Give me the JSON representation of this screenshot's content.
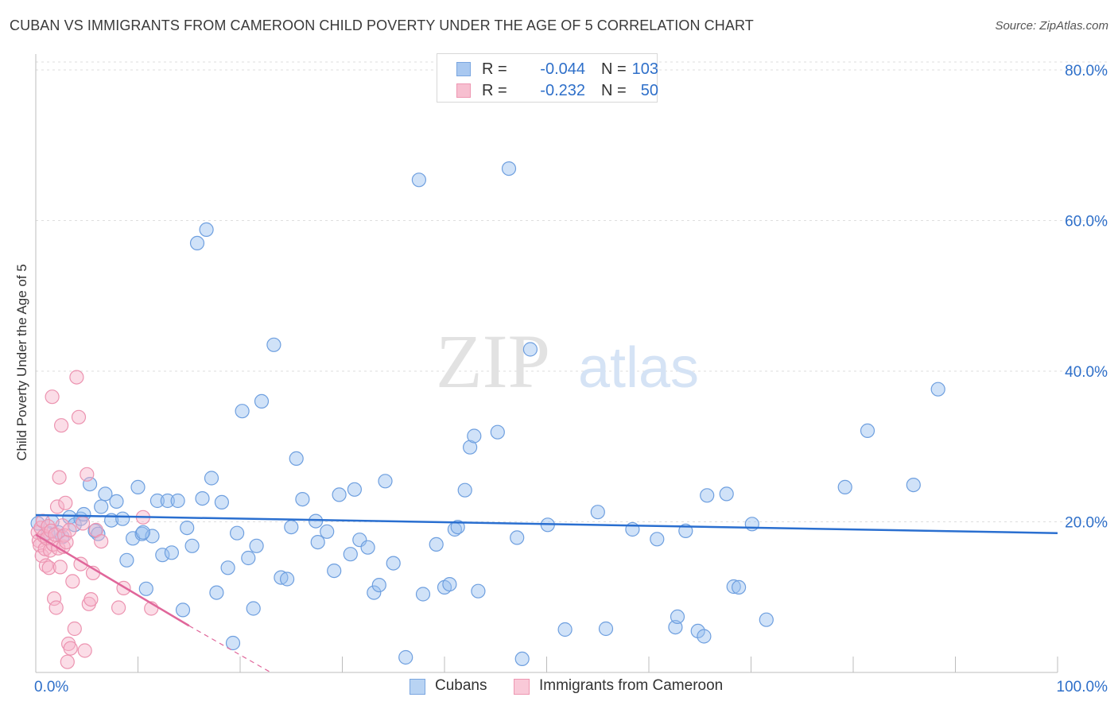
{
  "title": "CUBAN VS IMMIGRANTS FROM CAMEROON CHILD POVERTY UNDER THE AGE OF 5 CORRELATION CHART",
  "source": "Source: ZipAtlas.com",
  "watermark": {
    "part1": "ZIP",
    "part2": "atlas"
  },
  "stats": [
    {
      "r_label": "R =",
      "r_value": "-0.044",
      "n_label": "N =",
      "n_value": "103",
      "color": "#a9c8f0",
      "border": "#7aa6e0"
    },
    {
      "r_label": "R =",
      "r_value": "-0.232",
      "n_label": "N =",
      "n_value": "50",
      "color": "#f7bfd0",
      "border": "#ee97b2"
    }
  ],
  "legend": [
    {
      "label": "Cubans",
      "color": "#b8d3f3",
      "border": "#7aa6e0"
    },
    {
      "label": "Immigrants from Cameroon",
      "color": "#f9c9d8",
      "border": "#ee97b2"
    }
  ],
  "chart_data": {
    "type": "scatter",
    "title": "CUBAN VS IMMIGRANTS FROM CAMEROON CHILD POVERTY UNDER THE AGE OF 5 CORRELATION CHART",
    "xlabel": "",
    "ylabel": "Child Poverty Under the Age of 5",
    "xlim": [
      0,
      100
    ],
    "ylim": [
      0,
      80
    ],
    "x_tick_labels": [
      "0.0%",
      "100.0%"
    ],
    "y_ticks": [
      20,
      40,
      60,
      80
    ],
    "y_tick_labels": [
      "20.0%",
      "40.0%",
      "60.0%",
      "80.0%"
    ],
    "grid": "horizontal dashed",
    "legend_position": "bottom-center",
    "colors": {
      "Cubans": "#5b93dc",
      "Immigrants from Cameroon": "#e983a6",
      "cubans_trend": "#2a6fd0",
      "cameroon_trend": "#e0669a",
      "axis_tick_text": "#2e6fc9"
    },
    "series": [
      {
        "name": "Cubans",
        "points": [
          [
            0.2,
            19.8
          ],
          [
            1.2,
            18.5
          ],
          [
            1.6,
            20.0
          ],
          [
            2.2,
            18.6
          ],
          [
            2.6,
            18.0
          ],
          [
            3.3,
            20.6
          ],
          [
            3.8,
            19.6
          ],
          [
            4.4,
            20.4
          ],
          [
            4.7,
            21.0
          ],
          [
            5.3,
            25.0
          ],
          [
            5.8,
            18.8
          ],
          [
            6.4,
            22.0
          ],
          [
            6.8,
            23.7
          ],
          [
            7.4,
            20.2
          ],
          [
            7.9,
            22.7
          ],
          [
            8.5,
            20.4
          ],
          [
            8.9,
            14.9
          ],
          [
            9.5,
            17.8
          ],
          [
            10.0,
            24.6
          ],
          [
            10.4,
            18.4
          ],
          [
            10.8,
            11.1
          ],
          [
            11.4,
            18.1
          ],
          [
            11.9,
            22.8
          ],
          [
            12.4,
            15.6
          ],
          [
            12.9,
            22.8
          ],
          [
            13.3,
            15.9
          ],
          [
            13.9,
            22.8
          ],
          [
            14.4,
            8.3
          ],
          [
            14.8,
            19.2
          ],
          [
            15.3,
            16.8
          ],
          [
            15.8,
            57.0
          ],
          [
            16.7,
            58.8
          ],
          [
            16.3,
            23.1
          ],
          [
            17.2,
            25.8
          ],
          [
            17.7,
            10.6
          ],
          [
            18.2,
            22.6
          ],
          [
            18.8,
            13.9
          ],
          [
            19.3,
            3.9
          ],
          [
            19.7,
            18.5
          ],
          [
            20.2,
            34.7
          ],
          [
            20.8,
            15.2
          ],
          [
            21.3,
            8.5
          ],
          [
            21.6,
            16.8
          ],
          [
            22.1,
            36.0
          ],
          [
            23.3,
            43.5
          ],
          [
            24.0,
            12.6
          ],
          [
            24.6,
            12.4
          ],
          [
            25.0,
            19.3
          ],
          [
            25.5,
            28.4
          ],
          [
            26.1,
            23.0
          ],
          [
            27.4,
            20.1
          ],
          [
            27.6,
            17.3
          ],
          [
            28.5,
            18.7
          ],
          [
            29.2,
            13.5
          ],
          [
            29.7,
            23.6
          ],
          [
            30.8,
            15.7
          ],
          [
            31.2,
            24.3
          ],
          [
            31.7,
            17.6
          ],
          [
            32.5,
            16.6
          ],
          [
            33.1,
            10.6
          ],
          [
            33.6,
            11.6
          ],
          [
            34.2,
            25.4
          ],
          [
            35.0,
            14.5
          ],
          [
            36.2,
            2.0
          ],
          [
            37.5,
            65.4
          ],
          [
            37.9,
            10.4
          ],
          [
            39.2,
            17.0
          ],
          [
            40.0,
            11.3
          ],
          [
            40.5,
            11.7
          ],
          [
            41.0,
            19.0
          ],
          [
            41.3,
            19.3
          ],
          [
            42.0,
            24.2
          ],
          [
            42.5,
            29.9
          ],
          [
            42.9,
            31.4
          ],
          [
            43.3,
            10.8
          ],
          [
            45.2,
            31.9
          ],
          [
            46.3,
            66.9
          ],
          [
            47.1,
            17.9
          ],
          [
            47.6,
            1.8
          ],
          [
            48.4,
            42.9
          ],
          [
            50.1,
            19.6
          ],
          [
            51.8,
            5.7
          ],
          [
            55.0,
            21.3
          ],
          [
            55.8,
            5.8
          ],
          [
            58.4,
            19.0
          ],
          [
            60.8,
            17.7
          ],
          [
            62.6,
            6.0
          ],
          [
            62.8,
            7.4
          ],
          [
            63.6,
            18.8
          ],
          [
            64.8,
            5.5
          ],
          [
            65.4,
            4.8
          ],
          [
            65.7,
            23.5
          ],
          [
            67.6,
            23.7
          ],
          [
            68.3,
            11.4
          ],
          [
            68.8,
            11.3
          ],
          [
            70.1,
            19.7
          ],
          [
            71.5,
            7.0
          ],
          [
            79.2,
            24.6
          ],
          [
            81.4,
            32.1
          ],
          [
            85.9,
            24.9
          ],
          [
            88.3,
            37.6
          ],
          [
            10.5,
            18.6
          ],
          [
            6.1,
            18.4
          ]
        ]
      },
      {
        "name": "Immigrants from Cameroon",
        "points": [
          [
            0.2,
            18.6
          ],
          [
            0.3,
            17.5
          ],
          [
            0.4,
            16.9
          ],
          [
            0.5,
            19.2
          ],
          [
            0.6,
            15.5
          ],
          [
            0.7,
            20.1
          ],
          [
            0.8,
            18.1
          ],
          [
            0.9,
            16.4
          ],
          [
            1.0,
            14.2
          ],
          [
            1.1,
            17.8
          ],
          [
            1.2,
            19.4
          ],
          [
            1.3,
            13.9
          ],
          [
            1.4,
            16.2
          ],
          [
            1.5,
            18.8
          ],
          [
            1.6,
            36.6
          ],
          [
            1.7,
            17.0
          ],
          [
            1.8,
            9.8
          ],
          [
            1.9,
            18.3
          ],
          [
            2.0,
            8.6
          ],
          [
            2.1,
            22.0
          ],
          [
            2.2,
            16.5
          ],
          [
            2.3,
            25.9
          ],
          [
            2.4,
            14.0
          ],
          [
            2.5,
            32.8
          ],
          [
            2.6,
            19.5
          ],
          [
            2.7,
            16.7
          ],
          [
            2.8,
            18.2
          ],
          [
            2.9,
            22.5
          ],
          [
            3.0,
            17.3
          ],
          [
            3.1,
            1.4
          ],
          [
            3.2,
            3.8
          ],
          [
            3.3,
            18.9
          ],
          [
            3.4,
            3.2
          ],
          [
            3.6,
            12.1
          ],
          [
            3.8,
            5.8
          ],
          [
            4.0,
            39.2
          ],
          [
            4.2,
            33.9
          ],
          [
            4.4,
            14.4
          ],
          [
            4.6,
            19.8
          ],
          [
            4.8,
            2.9
          ],
          [
            5.0,
            26.3
          ],
          [
            5.2,
            9.1
          ],
          [
            5.4,
            9.7
          ],
          [
            5.6,
            13.2
          ],
          [
            5.9,
            18.9
          ],
          [
            6.4,
            17.4
          ],
          [
            8.1,
            8.6
          ],
          [
            8.6,
            11.2
          ],
          [
            10.5,
            20.6
          ],
          [
            11.3,
            8.5
          ]
        ]
      }
    ],
    "trendlines": [
      {
        "series": "Cubans",
        "from": [
          0,
          20.9
        ],
        "to": [
          100,
          18.5
        ],
        "style": "solid"
      },
      {
        "series": "Immigrants from Cameroon",
        "from": [
          0,
          18.3
        ],
        "to": [
          15,
          6.2
        ],
        "style": "solid"
      },
      {
        "series": "Immigrants from Cameroon",
        "from": [
          15,
          6.2
        ],
        "to": [
          23,
          0
        ],
        "style": "dashed"
      }
    ]
  }
}
